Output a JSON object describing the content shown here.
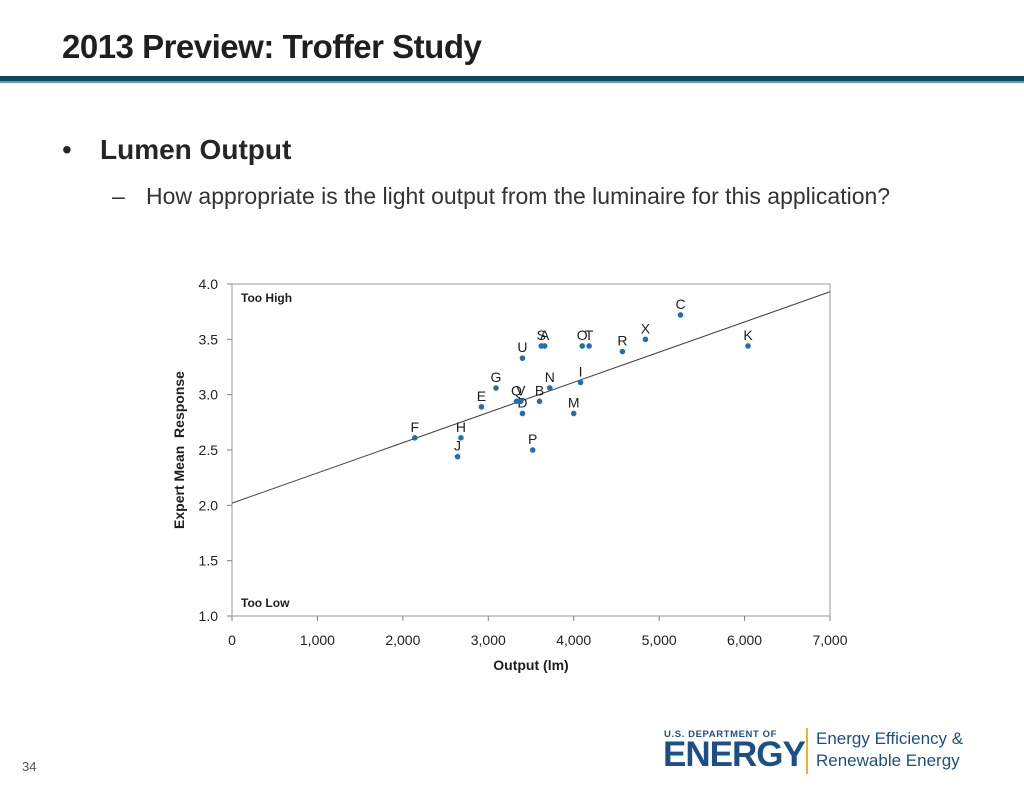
{
  "slide": {
    "title": "2013 Preview: Troffer Study",
    "bullet_marker": "•",
    "bullet": "Lumen Output",
    "sub_bullet_marker": "–",
    "sub_bullet": "How appropriate is the light output from the luminaire for this application?",
    "page_number": "34"
  },
  "footer": {
    "logo_small_text": "U.S. DEPARTMENT OF",
    "logo_big_text": "ENERGY",
    "logo_office_line1": "Energy Efficiency &",
    "logo_office_line2": "Renewable Energy"
  },
  "colors": {
    "title_rule": "#0d4a5e",
    "title_rule_light": "#5fa0b4",
    "marker": "#1f6fb5",
    "trendline": "#404040",
    "logo_blue": "#1c4f8a",
    "logo_gold": "#f0b323"
  },
  "chart_data": {
    "type": "scatter",
    "xlabel": "Output (lm)",
    "ylabel": "Expert Mean  Response",
    "xlim": [
      0,
      7000
    ],
    "ylim": [
      1.0,
      4.0
    ],
    "x_ticks": [
      0,
      1000,
      2000,
      3000,
      4000,
      5000,
      6000,
      7000
    ],
    "x_tick_labels": [
      "0",
      "1,000",
      "2,000",
      "3,000",
      "4,000",
      "5,000",
      "6,000",
      "7,000"
    ],
    "y_ticks": [
      1.0,
      1.5,
      2.0,
      2.5,
      3.0,
      3.5,
      4.0
    ],
    "y_tick_labels": [
      "1.0",
      "1.5",
      "2.0",
      "2.5",
      "3.0",
      "3.5",
      "4.0"
    ],
    "grid": false,
    "annotations": {
      "top": "Too High",
      "bottom": "Too Low"
    },
    "trendline": {
      "x": [
        0,
        7000
      ],
      "y": [
        2.02,
        3.93
      ]
    },
    "points": [
      {
        "label": "A",
        "x": 3660,
        "y": 3.44
      },
      {
        "label": "B",
        "x": 3600,
        "y": 2.94
      },
      {
        "label": "C",
        "x": 5250,
        "y": 3.72
      },
      {
        "label": "D",
        "x": 3400,
        "y": 2.83
      },
      {
        "label": "E",
        "x": 2920,
        "y": 2.89
      },
      {
        "label": "F",
        "x": 2140,
        "y": 2.61
      },
      {
        "label": "G",
        "x": 3090,
        "y": 3.06
      },
      {
        "label": "H",
        "x": 2680,
        "y": 2.61
      },
      {
        "label": "I",
        "x": 4080,
        "y": 3.11
      },
      {
        "label": "J",
        "x": 2640,
        "y": 2.44
      },
      {
        "label": "K",
        "x": 6040,
        "y": 3.44
      },
      {
        "label": "M",
        "x": 4000,
        "y": 2.83
      },
      {
        "label": "N",
        "x": 3720,
        "y": 3.06
      },
      {
        "label": "O",
        "x": 4100,
        "y": 3.44
      },
      {
        "label": "P",
        "x": 3520,
        "y": 2.5
      },
      {
        "label": "Q",
        "x": 3330,
        "y": 2.94
      },
      {
        "label": "R",
        "x": 4570,
        "y": 3.39
      },
      {
        "label": "S",
        "x": 3620,
        "y": 3.44
      },
      {
        "label": "T",
        "x": 4180,
        "y": 3.44
      },
      {
        "label": "U",
        "x": 3400,
        "y": 3.33
      },
      {
        "label": "V",
        "x": 3380,
        "y": 2.94
      },
      {
        "label": "X",
        "x": 4840,
        "y": 3.5
      }
    ]
  }
}
